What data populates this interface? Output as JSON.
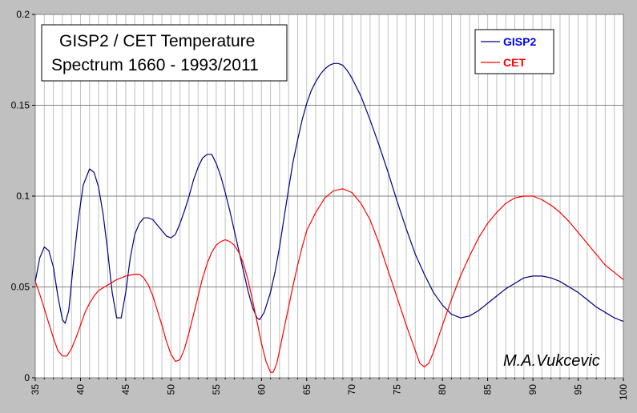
{
  "chart_data": {
    "type": "line",
    "title": "GISP2 / CET Temperature",
    "subtitle": "Spectrum 1660 - 1993/2011",
    "xlabel": "",
    "ylabel": "",
    "xlim": [
      35,
      100
    ],
    "ylim": [
      0,
      0.2
    ],
    "x_ticks": [
      35,
      40,
      45,
      50,
      55,
      60,
      65,
      70,
      75,
      80,
      85,
      90,
      95,
      100
    ],
    "y_ticks": [
      0,
      0.05,
      0.1,
      0.15,
      0.2
    ],
    "y_tick_labels": [
      "0",
      "0.05",
      "0.1",
      "0.15",
      "0.2"
    ],
    "grid": "vertical lines every unit, horizontal at major ticks",
    "legend": "top-right",
    "annotation": "M.A.Vukcevic",
    "series": [
      {
        "name": "GISP2",
        "color": "#000080",
        "points": [
          [
            35,
            0.053
          ],
          [
            35.5,
            0.066
          ],
          [
            36,
            0.072
          ],
          [
            36.5,
            0.07
          ],
          [
            37,
            0.061
          ],
          [
            37.5,
            0.045
          ],
          [
            38,
            0.032
          ],
          [
            38.3,
            0.03
          ],
          [
            38.7,
            0.037
          ],
          [
            39.2,
            0.062
          ],
          [
            39.7,
            0.085
          ],
          [
            40.3,
            0.106
          ],
          [
            41,
            0.115
          ],
          [
            41.5,
            0.113
          ],
          [
            42,
            0.105
          ],
          [
            42.5,
            0.09
          ],
          [
            43,
            0.07
          ],
          [
            43.5,
            0.047
          ],
          [
            44,
            0.033
          ],
          [
            44.5,
            0.033
          ],
          [
            45,
            0.047
          ],
          [
            45.5,
            0.066
          ],
          [
            46,
            0.079
          ],
          [
            46.5,
            0.085
          ],
          [
            47,
            0.088
          ],
          [
            47.5,
            0.088
          ],
          [
            48,
            0.087
          ],
          [
            48.5,
            0.084
          ],
          [
            49,
            0.081
          ],
          [
            49.5,
            0.078
          ],
          [
            50,
            0.077
          ],
          [
            50.5,
            0.079
          ],
          [
            51,
            0.085
          ],
          [
            51.5,
            0.092
          ],
          [
            52,
            0.1
          ],
          [
            52.5,
            0.109
          ],
          [
            53,
            0.116
          ],
          [
            53.5,
            0.121
          ],
          [
            54,
            0.123
          ],
          [
            54.5,
            0.123
          ],
          [
            55,
            0.118
          ],
          [
            55.5,
            0.111
          ],
          [
            56,
            0.102
          ],
          [
            56.5,
            0.092
          ],
          [
            57,
            0.081
          ],
          [
            57.5,
            0.07
          ],
          [
            58,
            0.059
          ],
          [
            58.5,
            0.048
          ],
          [
            59,
            0.039
          ],
          [
            59.5,
            0.033
          ],
          [
            59.8,
            0.032
          ],
          [
            60.3,
            0.036
          ],
          [
            61,
            0.047
          ],
          [
            61.5,
            0.058
          ],
          [
            62,
            0.072
          ],
          [
            62.5,
            0.088
          ],
          [
            63,
            0.104
          ],
          [
            63.5,
            0.119
          ],
          [
            64,
            0.131
          ],
          [
            64.5,
            0.142
          ],
          [
            65,
            0.151
          ],
          [
            65.5,
            0.158
          ],
          [
            66,
            0.163
          ],
          [
            66.5,
            0.167
          ],
          [
            67,
            0.17
          ],
          [
            67.5,
            0.172
          ],
          [
            68,
            0.173
          ],
          [
            68.5,
            0.173
          ],
          [
            69,
            0.172
          ],
          [
            69.5,
            0.169
          ],
          [
            70,
            0.165
          ],
          [
            71,
            0.155
          ],
          [
            72,
            0.142
          ],
          [
            73,
            0.128
          ],
          [
            74,
            0.113
          ],
          [
            75,
            0.097
          ],
          [
            76,
            0.082
          ],
          [
            77,
            0.068
          ],
          [
            78,
            0.057
          ],
          [
            79,
            0.047
          ],
          [
            80,
            0.04
          ],
          [
            81,
            0.035
          ],
          [
            82,
            0.033
          ],
          [
            83,
            0.034
          ],
          [
            84,
            0.037
          ],
          [
            85,
            0.041
          ],
          [
            86,
            0.045
          ],
          [
            87,
            0.049
          ],
          [
            88,
            0.052
          ],
          [
            89,
            0.055
          ],
          [
            90,
            0.056
          ],
          [
            91,
            0.056
          ],
          [
            92,
            0.055
          ],
          [
            93,
            0.053
          ],
          [
            94,
            0.05
          ],
          [
            95,
            0.047
          ],
          [
            96,
            0.043
          ],
          [
            97,
            0.039
          ],
          [
            98,
            0.036
          ],
          [
            99,
            0.033
          ],
          [
            100,
            0.031
          ]
        ]
      },
      {
        "name": "CET",
        "color": "#ff0000",
        "points": [
          [
            35,
            0.053
          ],
          [
            35.5,
            0.046
          ],
          [
            36,
            0.038
          ],
          [
            36.5,
            0.03
          ],
          [
            37,
            0.022
          ],
          [
            37.5,
            0.015
          ],
          [
            38,
            0.012
          ],
          [
            38.5,
            0.012
          ],
          [
            39,
            0.016
          ],
          [
            39.5,
            0.022
          ],
          [
            40,
            0.029
          ],
          [
            40.5,
            0.036
          ],
          [
            41,
            0.041
          ],
          [
            41.5,
            0.045
          ],
          [
            42,
            0.048
          ],
          [
            43,
            0.051
          ],
          [
            44,
            0.054
          ],
          [
            45,
            0.056
          ],
          [
            46,
            0.057
          ],
          [
            46.5,
            0.057
          ],
          [
            47,
            0.055
          ],
          [
            47.5,
            0.051
          ],
          [
            48,
            0.045
          ],
          [
            48.5,
            0.037
          ],
          [
            49,
            0.029
          ],
          [
            49.5,
            0.02
          ],
          [
            50,
            0.013
          ],
          [
            50.5,
            0.009
          ],
          [
            51,
            0.01
          ],
          [
            51.5,
            0.016
          ],
          [
            52,
            0.025
          ],
          [
            52.5,
            0.035
          ],
          [
            53,
            0.045
          ],
          [
            53.5,
            0.055
          ],
          [
            54,
            0.063
          ],
          [
            54.5,
            0.069
          ],
          [
            55,
            0.073
          ],
          [
            55.5,
            0.075
          ],
          [
            56,
            0.076
          ],
          [
            56.5,
            0.075
          ],
          [
            57,
            0.073
          ],
          [
            57.5,
            0.069
          ],
          [
            58,
            0.063
          ],
          [
            58.5,
            0.054
          ],
          [
            59,
            0.043
          ],
          [
            59.5,
            0.031
          ],
          [
            60,
            0.019
          ],
          [
            60.5,
            0.009
          ],
          [
            61,
            0.003
          ],
          [
            61.3,
            0.003
          ],
          [
            61.7,
            0.008
          ],
          [
            62,
            0.015
          ],
          [
            62.5,
            0.027
          ],
          [
            63,
            0.039
          ],
          [
            63.5,
            0.051
          ],
          [
            64,
            0.062
          ],
          [
            64.5,
            0.072
          ],
          [
            65,
            0.081
          ],
          [
            66,
            0.091
          ],
          [
            67,
            0.099
          ],
          [
            68,
            0.103
          ],
          [
            69,
            0.104
          ],
          [
            70,
            0.102
          ],
          [
            71,
            0.096
          ],
          [
            72,
            0.087
          ],
          [
            73,
            0.074
          ],
          [
            74,
            0.059
          ],
          [
            75,
            0.044
          ],
          [
            76,
            0.029
          ],
          [
            77,
            0.015
          ],
          [
            77.5,
            0.008
          ],
          [
            78,
            0.006
          ],
          [
            78.5,
            0.008
          ],
          [
            79,
            0.014
          ],
          [
            80,
            0.029
          ],
          [
            81,
            0.043
          ],
          [
            82,
            0.056
          ],
          [
            83,
            0.067
          ],
          [
            84,
            0.077
          ],
          [
            85,
            0.085
          ],
          [
            86,
            0.091
          ],
          [
            87,
            0.096
          ],
          [
            88,
            0.099
          ],
          [
            89,
            0.1
          ],
          [
            90,
            0.1
          ],
          [
            91,
            0.098
          ],
          [
            92,
            0.095
          ],
          [
            93,
            0.091
          ],
          [
            94,
            0.086
          ],
          [
            95,
            0.08
          ],
          [
            96,
            0.074
          ],
          [
            97,
            0.068
          ],
          [
            98,
            0.062
          ],
          [
            99,
            0.058
          ],
          [
            100,
            0.054
          ]
        ]
      }
    ]
  }
}
